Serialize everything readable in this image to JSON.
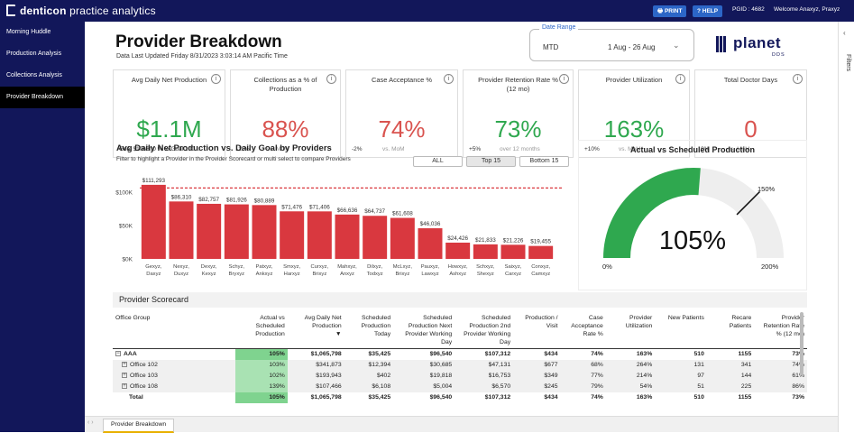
{
  "app": {
    "brand_bold": "denticon",
    "brand_rest": " practice analytics",
    "print_label": "PRINT",
    "help_label": "HELP",
    "pgid": "PGID : 4682",
    "welcome": "Welcome Anaxyz, Praxyz"
  },
  "sidebar": {
    "items": [
      {
        "label": "Morning Huddle"
      },
      {
        "label": "Production Analysis"
      },
      {
        "label": "Collections Analysis"
      },
      {
        "label": "Provider Breakdown"
      }
    ]
  },
  "page": {
    "title": "Provider Breakdown",
    "updated": "Data Last Updated Friday  8/31/2023 3:03:14 AM Pacific Time"
  },
  "date_range": {
    "label": "Date Range",
    "value": "MTD",
    "range": "1 Aug - 26 Aug"
  },
  "logo": {
    "text": "planet",
    "sub": "DDS"
  },
  "filters_label": "Filters",
  "kpis": [
    {
      "title": "Avg Daily Net Production",
      "value": "$1.1M",
      "sub": "Goal  $106600  % to Goal 100...",
      "sub2": ""
    },
    {
      "title": "Collections as a % of Production",
      "value": "88%",
      "sub": "-11%",
      "sub2": "vs. MoM"
    },
    {
      "title": "Case Acceptance %",
      "value": "74%",
      "sub": "-2%",
      "sub2": "vs. MoM"
    },
    {
      "title": "Provider Retention Rate % (12 mo)",
      "value": "73%",
      "sub": "+5%",
      "sub2": "over 12 months"
    },
    {
      "title": "Provider Utilization",
      "value": "163%",
      "sub": "+10%",
      "sub2": "vs. MoM"
    },
    {
      "title": "Total Doctor Days",
      "value": "0",
      "sub": "0%",
      "sub2": "vs. MoM"
    }
  ],
  "barchart_panel": {
    "title": "Avg Daily Net Production vs. Daily Goal by Providers",
    "subtitle": "Filter to highlight a Provider in the Provider Scorecard or multi select to compare Providers",
    "buttons": [
      "ALL",
      "Top 15",
      "Bottom 15"
    ]
  },
  "chart_data": {
    "type": "bar",
    "categories": [
      "Gexyz, Daxyz",
      "Nexyz, Duxyz",
      "Dexyz, Kexyz",
      "Schyz, Bryxyz",
      "Patxyz, Ankxyz",
      "Smxyz, Harxyz",
      "Curxyz, Brixyz",
      "Mahxyz, Anxyz",
      "Dilxyz, Todxyz",
      "McLxyz, Brixyz",
      "Pauxyz, Lawxyz",
      "Howxyz, Ashxyz",
      "Schxyz, Shexyz",
      "Saixyz, Carxyz",
      "Conxyz, Camxyz"
    ],
    "values": [
      111293,
      86310,
      82757,
      81926,
      80889,
      71476,
      71406,
      66636,
      64737,
      61608,
      46036,
      24426,
      21833,
      21226,
      19455
    ],
    "labels": [
      "$111,293",
      "$86,310",
      "$82,757",
      "$81,926",
      "$80,889",
      "$71,476",
      "$71,406",
      "$66,636",
      "$64,737",
      "$61,608",
      "$46,036",
      "$24,426",
      "$21,833",
      "$21,226",
      "$19,455"
    ],
    "goal": 106600,
    "yticks": [
      "$0K",
      "$50K",
      "$100K"
    ],
    "ytick_values": [
      0,
      50000,
      100000
    ],
    "ylim": [
      0,
      122000
    ],
    "color": "#d9383f",
    "goal_color": "#d9383f"
  },
  "gauge": {
    "title": "Actual vs Scheduled Production",
    "value": "105%",
    "min": "0%",
    "max": "200%",
    "target": "150%",
    "fraction": 0.525,
    "target_fraction": 0.75,
    "fill_color": "#2fa84f",
    "track_color": "#eeeeee"
  },
  "scorecard": {
    "title": "Provider Scorecard",
    "columns": [
      "Office Group",
      "Actual vs Scheduled Production",
      "Avg Daily Net Production",
      "Scheduled Production Today",
      "Scheduled Production Next Provider Working Day",
      "Scheduled Production 2nd Provider Working Day",
      "Production / Visit",
      "Case Acceptance Rate %",
      "Provider Utilization",
      "New Patients",
      "Recare Patients",
      "Provider Retention Rate % (12 mo)"
    ],
    "rows": [
      {
        "cells": [
          "AAA",
          "105%",
          "$1,065,798",
          "$35,425",
          "$96,540",
          "$107,312",
          "$434",
          "74%",
          "163%",
          "510",
          "1155",
          "73%"
        ]
      },
      {
        "cells": [
          "Office 102",
          "103%",
          "$341,873",
          "$12,394",
          "$30,685",
          "$47,131",
          "$677",
          "68%",
          "264%",
          "131",
          "341",
          "74%"
        ]
      },
      {
        "cells": [
          "Office 103",
          "102%",
          "$193,943",
          "$402",
          "$19,818",
          "$16,753",
          "$349",
          "77%",
          "214%",
          "97",
          "144",
          "61%"
        ]
      },
      {
        "cells": [
          "Office 108",
          "139%",
          "$107,466",
          "$6,108",
          "$5,004",
          "$6,570",
          "$245",
          "79%",
          "54%",
          "51",
          "225",
          "86%"
        ]
      },
      {
        "cells": [
          "Total",
          "105%",
          "$1,065,798",
          "$35,425",
          "$96,540",
          "$107,312",
          "$434",
          "74%",
          "163%",
          "510",
          "1155",
          "73%"
        ]
      }
    ]
  },
  "bottom_tab": "Provider Breakdown"
}
